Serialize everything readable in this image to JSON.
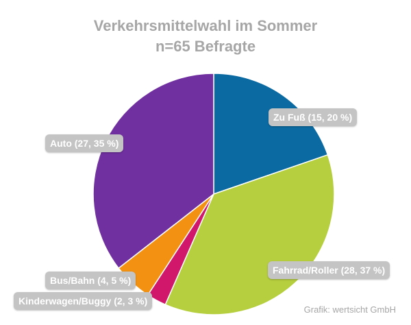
{
  "chart_data": {
    "type": "pie",
    "title": "Verkehrsmittelwahl im Sommer",
    "subtitle": "n=65 Befragte",
    "slices": [
      {
        "label": "Zu Fuß",
        "count": 15,
        "percent": 20,
        "display": "Zu Fuß (15, 20 %)",
        "color": "#0b6aa2"
      },
      {
        "label": "Fahrrad/Roller",
        "count": 28,
        "percent": 37,
        "display": "Fahrrad/Roller (28, 37 %)",
        "color": "#b6cf3e"
      },
      {
        "label": "Kinderwagen/Buggy",
        "count": 2,
        "percent": 3,
        "display": "Kinderwagen/Buggy (2, 3 %)",
        "color": "#d0176b"
      },
      {
        "label": "Bus/Bahn",
        "count": 4,
        "percent": 5,
        "display": "Bus/Bahn (4, 5 %)",
        "color": "#f39212"
      },
      {
        "label": "Auto",
        "count": 27,
        "percent": 35,
        "display": "Auto (27, 35 %)",
        "color": "#7030a0"
      }
    ],
    "legend": "none"
  },
  "source": "Grafik: wertsicht GmbH"
}
